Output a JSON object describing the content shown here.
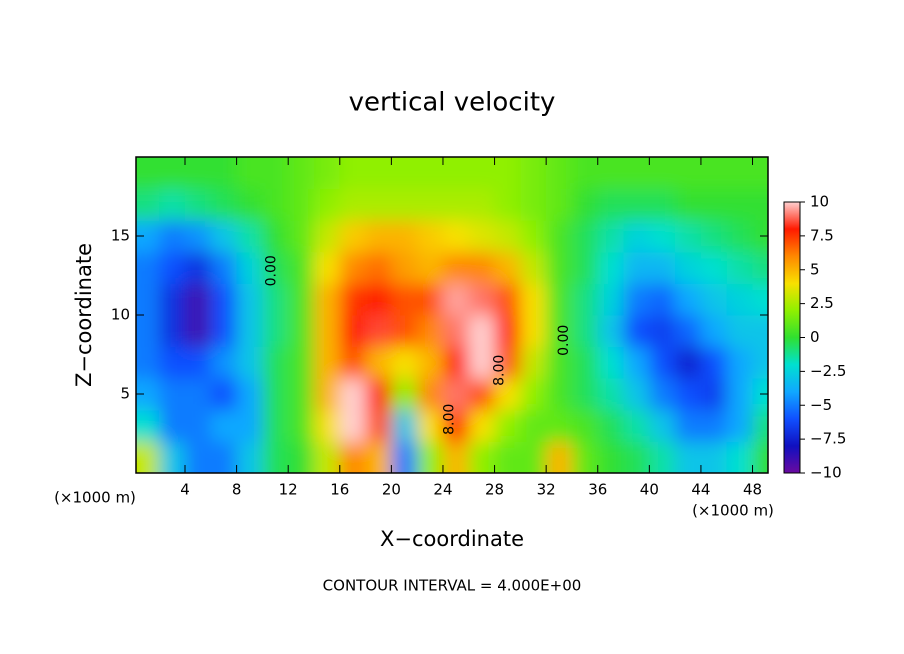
{
  "chart_data": {
    "type": "contour",
    "title": "vertical velocity",
    "xlabel": "X−coordinate",
    "ylabel": "Z−coordinate",
    "x_unit_label": "(×1000 m)",
    "footer": "CONTOUR INTERVAL = 4.000E+00",
    "xlim": [
      0.2,
      49.2
    ],
    "ylim": [
      0,
      20
    ],
    "xticks": [
      4,
      8,
      12,
      16,
      20,
      24,
      28,
      32,
      36,
      40,
      44,
      48
    ],
    "yticks": [
      5,
      10,
      15
    ],
    "clim": [
      -10,
      10
    ],
    "cticks": [
      10,
      7.5,
      5,
      2.5,
      0,
      {
        "value": -2.5,
        "label": "−2.5"
      },
      {
        "value": -5,
        "label": "−5"
      },
      {
        "value": -7.5,
        "label": "−7.5"
      },
      {
        "value": -10,
        "label": "−10"
      }
    ],
    "colorscale": [
      "#6a0aa0",
      "#1010c0",
      "#1050ff",
      "#10a8ff",
      "#00e0d0",
      "#30e030",
      "#90f000",
      "#f8e000",
      "#ff8800",
      "#ff1a00",
      "#ffd0d0"
    ],
    "x": [
      1,
      3,
      5,
      7,
      9,
      11,
      13,
      15,
      17,
      19,
      21,
      23,
      25,
      27,
      29,
      31,
      33,
      35,
      37,
      39,
      41,
      43,
      45,
      47,
      49
    ],
    "y": [
      1,
      3,
      5,
      7,
      9,
      11,
      13,
      15,
      17,
      19
    ],
    "z": [
      [
        3,
        -3,
        -5,
        -5,
        -3,
        -0.5,
        0,
        3,
        6,
        5,
        -5,
        2,
        5,
        2,
        1,
        1,
        5,
        1,
        0,
        -0.5,
        -1.5,
        -3,
        -3,
        -2,
        0
      ],
      [
        -2,
        -5,
        -5,
        -4,
        -4,
        -0.5,
        0.5,
        4,
        10,
        7,
        -3,
        4,
        8,
        4,
        2,
        1,
        1,
        0.5,
        -0.5,
        -1.5,
        -3,
        -5,
        -5,
        -4,
        -1
      ],
      [
        -4,
        -5,
        -5,
        -6,
        -4,
        -0.5,
        0.5,
        5,
        10,
        8,
        2,
        6,
        9,
        7,
        4,
        2,
        0.5,
        -0.5,
        -1.5,
        -3,
        -5,
        -6,
        -6.5,
        -4,
        -2
      ],
      [
        -5,
        -6,
        -6,
        -4.5,
        -3,
        -0.5,
        0.5,
        5,
        7,
        5,
        4,
        5,
        8,
        10,
        7,
        3,
        0.5,
        -0.5,
        -2,
        -4,
        -6,
        -7.5,
        -6,
        -4,
        -3
      ],
      [
        -5,
        -7,
        -9,
        -6,
        -3,
        -1,
        0.5,
        5,
        8,
        8.5,
        7,
        6,
        9,
        10,
        8,
        4,
        0.5,
        -1,
        -3,
        -6,
        -6.5,
        -5.5,
        -4,
        -3,
        -3
      ],
      [
        -5,
        -7,
        -9,
        -6,
        -3,
        -1,
        0.5,
        5,
        7.5,
        8,
        7,
        7,
        9.5,
        9,
        7,
        4,
        0.5,
        -1,
        -2.5,
        -5,
        -5.5,
        -4,
        -3,
        -2.5,
        -2
      ],
      [
        -5,
        -6,
        -7,
        -5,
        -2.5,
        -0.5,
        0.5,
        4,
        6,
        6.5,
        5.5,
        5,
        6,
        6,
        5,
        3,
        0.5,
        -0.5,
        -2,
        -3.5,
        -3.5,
        -2.5,
        -2,
        -1.5,
        -1
      ],
      [
        -4,
        -5,
        -4.5,
        -3,
        -1.5,
        0,
        1,
        3,
        4.5,
        5,
        5,
        4.5,
        4,
        3.5,
        3,
        2,
        0.5,
        -0.5,
        -1.5,
        -2.5,
        -2,
        -1.5,
        -1,
        -0.5,
        0
      ],
      [
        -1,
        -1.5,
        -1,
        -0.5,
        0,
        0.5,
        1,
        2,
        2.5,
        2.5,
        2.5,
        2.5,
        2.5,
        2.5,
        2,
        1.5,
        1,
        0,
        -0.5,
        -0.5,
        -0.5,
        0,
        0,
        0,
        0
      ],
      [
        0,
        0,
        0,
        0,
        0.5,
        0.5,
        1,
        1.5,
        2,
        2,
        2,
        2,
        2,
        2,
        2,
        1.5,
        1,
        0.5,
        0.5,
        0.5,
        0.5,
        0.5,
        0.5,
        0.5,
        0.5
      ]
    ],
    "annotations": [
      {
        "text": "0.00",
        "x": 10.7,
        "y": 12.8
      },
      {
        "text": "0.00",
        "x": 33.4,
        "y": 8.4
      },
      {
        "text": "8.00",
        "x": 28.4,
        "y": 6.5
      },
      {
        "text": "8.00",
        "x": 24.5,
        "y": 3.4
      }
    ]
  }
}
